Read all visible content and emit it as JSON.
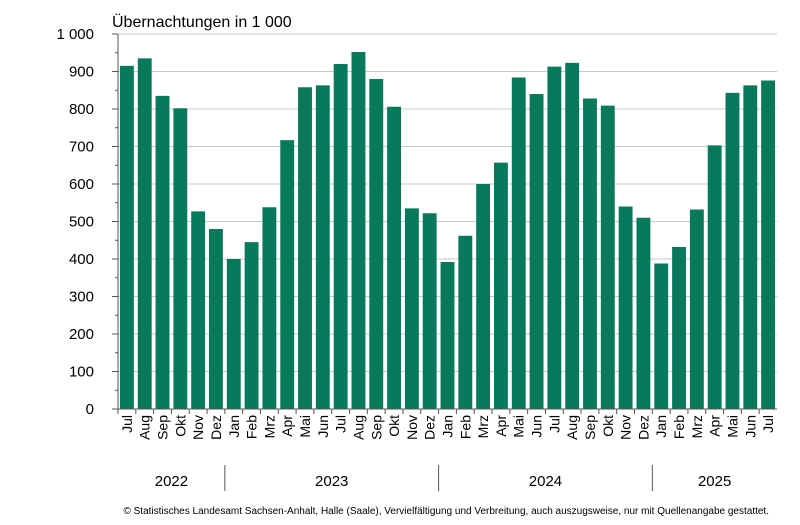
{
  "chart_data": {
    "type": "bar",
    "title": "Übernachtungen in 1 000",
    "xlabel": "",
    "ylabel": "",
    "ylim": [
      0,
      1000
    ],
    "yticks": [
      0,
      100,
      200,
      300,
      400,
      500,
      600,
      700,
      800,
      900,
      1000
    ],
    "ytick_labels": [
      "0",
      "100",
      "200",
      "300",
      "400",
      "500",
      "600",
      "700",
      "800",
      "900",
      "1 000"
    ],
    "grid": true,
    "bar_color": "#087a5b",
    "categories": [
      "Jul",
      "Aug",
      "Sep",
      "Okt",
      "Nov",
      "Dez",
      "Jan",
      "Feb",
      "Mrz",
      "Apr",
      "Mai",
      "Jun",
      "Jul",
      "Aug",
      "Sep",
      "Okt",
      "Nov",
      "Dez",
      "Jan",
      "Feb",
      "Mrz",
      "Apr",
      "Mai",
      "Jun",
      "Jul",
      "Aug",
      "Sep",
      "Okt",
      "Nov",
      "Dez",
      "Jan",
      "Feb",
      "Mrz",
      "Apr",
      "Mai",
      "Jun",
      "Jul"
    ],
    "values": [
      915,
      935,
      835,
      802,
      527,
      480,
      400,
      445,
      538,
      717,
      858,
      863,
      920,
      952,
      880,
      806,
      535,
      522,
      392,
      462,
      600,
      657,
      884,
      840,
      913,
      923,
      828,
      809,
      540,
      510,
      388,
      432,
      532,
      703,
      843,
      863,
      876
    ],
    "year_groups": [
      {
        "label": "2022",
        "start": 0,
        "end": 5
      },
      {
        "label": "2023",
        "start": 6,
        "end": 17
      },
      {
        "label": "2024",
        "start": 18,
        "end": 29
      },
      {
        "label": "2025",
        "start": 30,
        "end": 36
      }
    ]
  },
  "footer": "© Statistisches Landesamt Sachsen-Anhalt, Halle (Saale), Vervielfältigung und Verbreitung, auch auszugsweise, nur mit Quellenangabe gestattet."
}
